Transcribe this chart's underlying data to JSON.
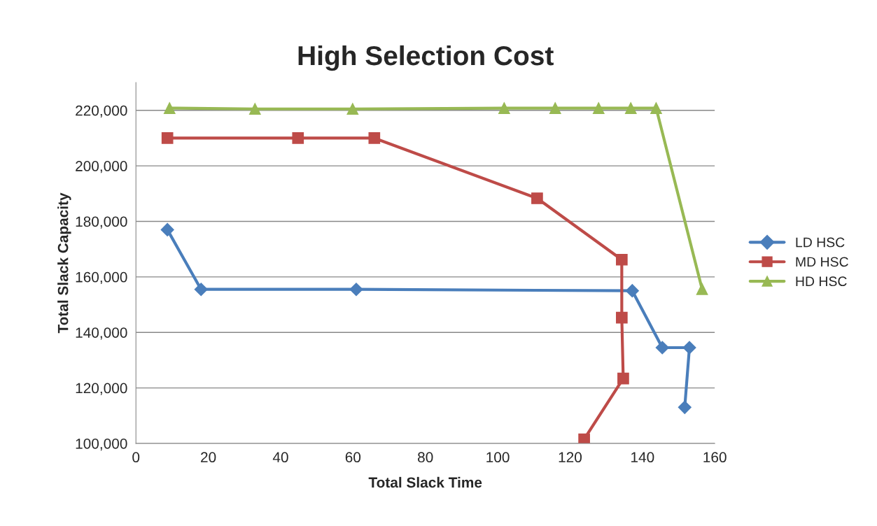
{
  "chart_data": {
    "type": "line",
    "title": "High Selection Cost",
    "xlabel": "Total Slack Time",
    "ylabel": "Total Slack Capacity",
    "xlim": [
      0,
      160
    ],
    "xticks": [
      0,
      20,
      40,
      60,
      80,
      100,
      120,
      140,
      160
    ],
    "ylim": [
      100000,
      230000
    ],
    "yticks": [
      {
        "value": 100000,
        "label": "100,000"
      },
      {
        "value": 120000,
        "label": "120,000"
      },
      {
        "value": 140000,
        "label": "140,000"
      },
      {
        "value": 160000,
        "label": "160,000"
      },
      {
        "value": 180000,
        "label": "180,000"
      },
      {
        "value": 200000,
        "label": "200,000"
      },
      {
        "value": 220000,
        "label": "220,000"
      }
    ],
    "grid": "y",
    "legend": "right",
    "series": [
      {
        "name": "LD HSC",
        "color": "#4a7ebb",
        "marker": "diamond",
        "x": [
          8.7,
          18,
          60.9,
          137.2,
          145.5,
          153,
          151.7
        ],
        "values": [
          177000,
          155500,
          155500,
          155000,
          134500,
          134500,
          113000
        ]
      },
      {
        "name": "MD HSC",
        "color": "#be4b48",
        "marker": "square",
        "x": [
          8.7,
          44.8,
          65.9,
          110.9,
          134.3,
          134.3,
          134.7,
          123.9
        ],
        "values": [
          210000,
          210000,
          210000,
          188300,
          166200,
          145300,
          123400,
          101500
        ]
      },
      {
        "name": "HD HSC",
        "color": "#98b954",
        "marker": "triangle",
        "x": [
          9.3,
          32.9,
          59.9,
          101.8,
          115.9,
          127.9,
          136.8,
          143.8,
          156.5
        ],
        "values": [
          220800,
          220500,
          220500,
          220800,
          220800,
          220800,
          220800,
          220800,
          155600
        ]
      }
    ]
  }
}
